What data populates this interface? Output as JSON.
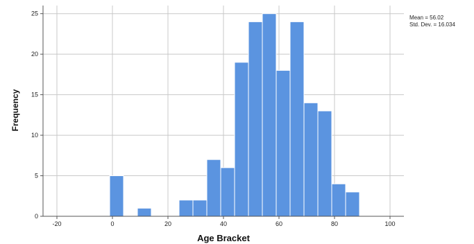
{
  "chart_data": {
    "type": "bar",
    "xlabel": "Age Bracket",
    "ylabel": "Frequency",
    "xlim": [
      -25,
      105
    ],
    "ylim": [
      0,
      26
    ],
    "x_ticks": [
      -20,
      0,
      20,
      40,
      60,
      80,
      100
    ],
    "y_ticks": [
      0,
      5,
      10,
      15,
      20,
      25
    ],
    "grid": true,
    "bin_width": 5,
    "bins": [
      {
        "start": -1,
        "value": 5
      },
      {
        "start": 9,
        "value": 1
      },
      {
        "start": 24,
        "value": 2
      },
      {
        "start": 29,
        "value": 2
      },
      {
        "start": 34,
        "value": 7
      },
      {
        "start": 39,
        "value": 6
      },
      {
        "start": 44,
        "value": 19
      },
      {
        "start": 49,
        "value": 24
      },
      {
        "start": 54,
        "value": 25
      },
      {
        "start": 59,
        "value": 18
      },
      {
        "start": 64,
        "value": 24
      },
      {
        "start": 69,
        "value": 14
      },
      {
        "start": 74,
        "value": 13
      },
      {
        "start": 79,
        "value": 4
      },
      {
        "start": 84,
        "value": 3
      }
    ],
    "stats": {
      "mean_text": "Mean = 56.02",
      "std_text": "Std. Dev. = 16.034"
    },
    "colors": {
      "bar_fill": "#5b94e0",
      "bar_stroke": "#ffffff",
      "grid": "#c8c8c8",
      "axis": "#555555"
    }
  }
}
